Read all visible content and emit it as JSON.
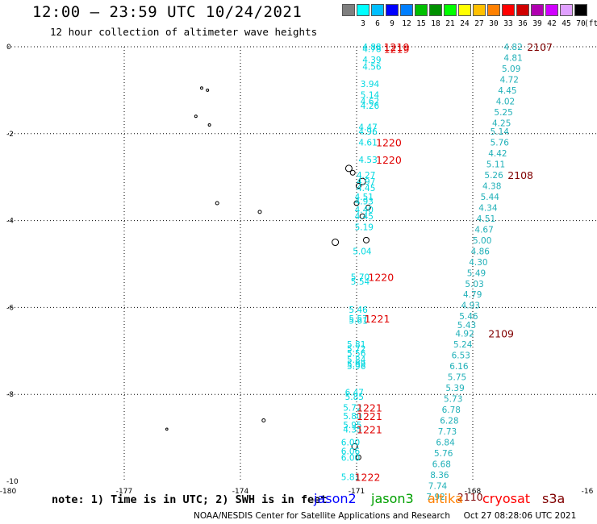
{
  "header": {
    "title": "12:00 – 23:59 UTC 10/24/2021",
    "subtitle": "12 hour collection of altimeter wave heights"
  },
  "legend": {
    "unit": "(ft)",
    "bins": [
      {
        "label": "",
        "color": "#7f7f7f"
      },
      {
        "label": "3",
        "color": "#00ffff"
      },
      {
        "label": "6",
        "color": "#00bfff"
      },
      {
        "label": "9",
        "color": "#0000ff"
      },
      {
        "label": "12",
        "color": "#007fff"
      },
      {
        "label": "15",
        "color": "#00c000"
      },
      {
        "label": "18",
        "color": "#009000"
      },
      {
        "label": "21",
        "color": "#00ff00"
      },
      {
        "label": "24",
        "color": "#ffff00"
      },
      {
        "label": "27",
        "color": "#ffc000"
      },
      {
        "label": "30",
        "color": "#ff8000"
      },
      {
        "label": "33",
        "color": "#ff0000"
      },
      {
        "label": "36",
        "color": "#d00000"
      },
      {
        "label": "39",
        "color": "#b000b0"
      },
      {
        "label": "42",
        "color": "#d000ff"
      },
      {
        "label": "45",
        "color": "#e0a0ff"
      },
      {
        "label": "70",
        "color": "#000000"
      }
    ]
  },
  "axes": {
    "x_ticks": [
      "-180",
      "-177",
      "-174",
      "-171",
      "-168",
      "-16"
    ],
    "y_ticks": [
      "0",
      "-2",
      "-4",
      "-6",
      "-8",
      "-10"
    ]
  },
  "colors": {
    "cyan_value": "#00d8e0",
    "teal_value": "#20b0b8",
    "red_time": "#e00000",
    "darkred_time": "#800000"
  },
  "tracks": [
    {
      "name": "jason3",
      "color_key": "cyan_value",
      "values": [
        {
          "lon": -170.85,
          "lat": 0.0,
          "v": "4.88"
        },
        {
          "lon": -170.85,
          "lat": -0.05,
          "v": "4.78"
        },
        {
          "lon": -170.85,
          "lat": -0.3,
          "v": "4.39"
        },
        {
          "lon": -170.85,
          "lat": -0.45,
          "v": "4.56"
        },
        {
          "lon": -170.9,
          "lat": -0.85,
          "v": "3.94"
        },
        {
          "lon": -170.9,
          "lat": -1.1,
          "v": "5.14"
        },
        {
          "lon": -170.9,
          "lat": -1.25,
          "v": "4.62"
        },
        {
          "lon": -170.9,
          "lat": -1.35,
          "v": "4.26"
        },
        {
          "lon": -170.95,
          "lat": -1.85,
          "v": "4.47"
        },
        {
          "lon": -170.95,
          "lat": -1.95,
          "v": "4.96"
        },
        {
          "lon": -170.95,
          "lat": -2.2,
          "v": "4.61"
        },
        {
          "lon": -170.95,
          "lat": -2.6,
          "v": "4.53"
        },
        {
          "lon": -171.0,
          "lat": -2.95,
          "v": "4.27"
        },
        {
          "lon": -171.0,
          "lat": -3.1,
          "v": "4.97"
        },
        {
          "lon": -171.0,
          "lat": -3.25,
          "v": "4.45"
        },
        {
          "lon": -171.05,
          "lat": -3.45,
          "v": "4.51"
        },
        {
          "lon": -171.05,
          "lat": -3.55,
          "v": "4.93"
        },
        {
          "lon": -171.05,
          "lat": -3.75,
          "v": "4.40"
        },
        {
          "lon": -171.05,
          "lat": -3.9,
          "v": "4.45"
        },
        {
          "lon": -171.05,
          "lat": -4.15,
          "v": "5.19"
        },
        {
          "lon": -171.1,
          "lat": -4.7,
          "v": "5.04"
        },
        {
          "lon": -171.15,
          "lat": -5.3,
          "v": "5.70"
        },
        {
          "lon": -171.15,
          "lat": -5.4,
          "v": "5.54"
        },
        {
          "lon": -171.2,
          "lat": -6.05,
          "v": "5.46"
        },
        {
          "lon": -171.2,
          "lat": -6.25,
          "v": "5.57"
        },
        {
          "lon": -171.2,
          "lat": -6.3,
          "v": "5.61"
        },
        {
          "lon": -171.25,
          "lat": -6.85,
          "v": "5.81"
        },
        {
          "lon": -171.25,
          "lat": -6.95,
          "v": "5.72"
        },
        {
          "lon": -171.25,
          "lat": -7.05,
          "v": "5.56"
        },
        {
          "lon": -171.25,
          "lat": -7.2,
          "v": "5.84"
        },
        {
          "lon": -171.25,
          "lat": -7.3,
          "v": "5.99"
        },
        {
          "lon": -171.25,
          "lat": -7.35,
          "v": "5.96"
        },
        {
          "lon": -171.3,
          "lat": -7.95,
          "v": "6.47"
        },
        {
          "lon": -171.3,
          "lat": -8.05,
          "v": "5.85"
        },
        {
          "lon": -171.35,
          "lat": -8.3,
          "v": "5.72"
        },
        {
          "lon": -171.35,
          "lat": -8.5,
          "v": "5.80"
        },
        {
          "lon": -171.35,
          "lat": -8.7,
          "v": "5.95"
        },
        {
          "lon": -171.35,
          "lat": -8.8,
          "v": "4.35"
        },
        {
          "lon": -171.4,
          "lat": -9.1,
          "v": "6.00"
        },
        {
          "lon": -171.4,
          "lat": -9.3,
          "v": "6.06"
        },
        {
          "lon": -171.4,
          "lat": -9.45,
          "v": "6.00"
        },
        {
          "lon": -171.4,
          "lat": -9.9,
          "v": "5.81"
        }
      ],
      "times": [
        {
          "lon": -170.3,
          "lat": 0.0,
          "t": "1219"
        },
        {
          "lon": -170.3,
          "lat": -0.05,
          "t": "1219"
        },
        {
          "lon": -170.5,
          "lat": -2.2,
          "t": "1220"
        },
        {
          "lon": -170.5,
          "lat": -2.6,
          "t": "1220"
        },
        {
          "lon": -170.7,
          "lat": -5.3,
          "t": "1220"
        },
        {
          "lon": -170.8,
          "lat": -6.25,
          "t": "1221"
        },
        {
          "lon": -171.0,
          "lat": -8.3,
          "t": "1221"
        },
        {
          "lon": -171.0,
          "lat": -8.5,
          "t": "1221"
        },
        {
          "lon": -171.0,
          "lat": -8.8,
          "t": "1221"
        },
        {
          "lon": -171.05,
          "lat": -9.9,
          "t": "1222"
        }
      ]
    },
    {
      "name": "cryosat",
      "color_key": "teal_value",
      "values": [
        {
          "lon": -167.2,
          "lat": 0.0,
          "v": "4.82"
        },
        {
          "lon": -167.2,
          "lat": -0.25,
          "v": "4.81"
        },
        {
          "lon": -167.25,
          "lat": -0.5,
          "v": "5.09"
        },
        {
          "lon": -167.3,
          "lat": -0.75,
          "v": "4.72"
        },
        {
          "lon": -167.35,
          "lat": -1.0,
          "v": "4.45"
        },
        {
          "lon": -167.4,
          "lat": -1.25,
          "v": "4.02"
        },
        {
          "lon": -167.45,
          "lat": -1.5,
          "v": "5.25"
        },
        {
          "lon": -167.5,
          "lat": -1.75,
          "v": "4.25"
        },
        {
          "lon": -167.55,
          "lat": -1.95,
          "v": "5.14"
        },
        {
          "lon": -167.55,
          "lat": -2.2,
          "v": "5.76"
        },
        {
          "lon": -167.6,
          "lat": -2.45,
          "v": "4.42"
        },
        {
          "lon": -167.65,
          "lat": -2.7,
          "v": "5.11"
        },
        {
          "lon": -167.7,
          "lat": -2.95,
          "v": "5.26"
        },
        {
          "lon": -167.75,
          "lat": -3.2,
          "v": "4.38"
        },
        {
          "lon": -167.8,
          "lat": -3.45,
          "v": "5.44"
        },
        {
          "lon": -167.85,
          "lat": -3.7,
          "v": "4.34"
        },
        {
          "lon": -167.9,
          "lat": -3.95,
          "v": "4.51"
        },
        {
          "lon": -167.95,
          "lat": -4.2,
          "v": "4.67"
        },
        {
          "lon": -168.0,
          "lat": -4.45,
          "v": "5.00"
        },
        {
          "lon": -168.05,
          "lat": -4.7,
          "v": "4.86"
        },
        {
          "lon": -168.1,
          "lat": -4.95,
          "v": "4.30"
        },
        {
          "lon": -168.15,
          "lat": -5.2,
          "v": "5.49"
        },
        {
          "lon": -168.2,
          "lat": -5.45,
          "v": "5.03"
        },
        {
          "lon": -168.25,
          "lat": -5.7,
          "v": "4.79"
        },
        {
          "lon": -168.3,
          "lat": -5.95,
          "v": "4.93"
        },
        {
          "lon": -168.35,
          "lat": -6.2,
          "v": "5.46"
        },
        {
          "lon": -168.4,
          "lat": -6.4,
          "v": "5.43"
        },
        {
          "lon": -168.45,
          "lat": -6.6,
          "v": "4.92"
        },
        {
          "lon": -168.5,
          "lat": -6.85,
          "v": "5.24"
        },
        {
          "lon": -168.55,
          "lat": -7.1,
          "v": "6.53"
        },
        {
          "lon": -168.6,
          "lat": -7.35,
          "v": "6.16"
        },
        {
          "lon": -168.65,
          "lat": -7.6,
          "v": "5.75"
        },
        {
          "lon": -168.7,
          "lat": -7.85,
          "v": "5.39"
        },
        {
          "lon": -168.75,
          "lat": -8.1,
          "v": "5.73"
        },
        {
          "lon": -168.8,
          "lat": -8.35,
          "v": "6.78"
        },
        {
          "lon": -168.85,
          "lat": -8.6,
          "v": "6.28"
        },
        {
          "lon": -168.9,
          "lat": -8.85,
          "v": "7.73"
        },
        {
          "lon": -168.95,
          "lat": -9.1,
          "v": "6.84"
        },
        {
          "lon": -169.0,
          "lat": -9.35,
          "v": "5.76"
        },
        {
          "lon": -169.05,
          "lat": -9.6,
          "v": "6.68"
        },
        {
          "lon": -169.1,
          "lat": -9.85,
          "v": "8.36"
        },
        {
          "lon": -169.15,
          "lat": -10.1,
          "v": "7.74"
        },
        {
          "lon": -169.2,
          "lat": -10.35,
          "v": "7.92"
        }
      ],
      "times": [
        {
          "lon": -166.6,
          "lat": 0.0,
          "t": "2107"
        },
        {
          "lon": -167.1,
          "lat": -2.95,
          "t": "2108"
        },
        {
          "lon": -167.6,
          "lat": -6.6,
          "t": "2109"
        },
        {
          "lon": -168.4,
          "lat": -10.35,
          "t": "2110"
        }
      ]
    }
  ],
  "footer": {
    "note": "note: 1) Time is in UTC; 2) SWH is in feet",
    "satellites": [
      {
        "name": "jason2",
        "color": "#0000ff"
      },
      {
        "name": "jason3",
        "color": "#00a000"
      },
      {
        "name": "altika",
        "color": "#ff8000"
      },
      {
        "name": "cryosat",
        "color": "#ff0000"
      },
      {
        "name": "s3a",
        "color": "#800000"
      }
    ],
    "credit": "NOAA/NESDIS Center for Satellite Applications and Research     Oct 27 08:28:06 UTC 2021"
  }
}
